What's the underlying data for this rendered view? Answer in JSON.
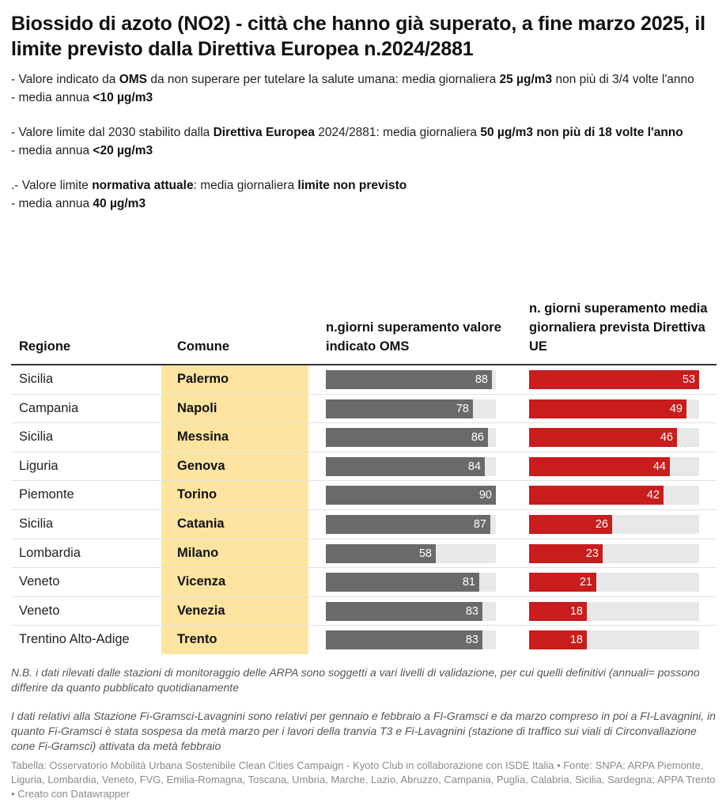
{
  "title": "Biossido di azoto (NO2) - città che hanno già superato, a fine marzo 2025, il limite previsto dalla Direttiva Europea n.2024/2881",
  "description": {
    "oms_line1_a": "- Valore indicato da ",
    "oms_line1_b": "OMS",
    "oms_line1_c": " da non superare per tutelare la salute umana: media giornaliera ",
    "oms_line1_d": "25 µg/m3",
    "oms_line1_e": " non più di 3/4 volte l'anno",
    "oms_line2_a": "- media annua ",
    "oms_line2_b": "<10 µg/m3",
    "ue_line1_a": "- Valore limite dal 2030 stabilito dalla ",
    "ue_line1_b": "Direttiva Europea",
    "ue_line1_c": " 2024/2881: media giornaliera ",
    "ue_line1_d": "50 µg/m3 non più di 18 volte l'anno",
    "ue_line2_a": "- media annua ",
    "ue_line2_b": "<20 µg/m3",
    "cur_line1_a": ".- Valore limite ",
    "cur_line1_b": "normativa attuale",
    "cur_line1_c": ": media giornaliera ",
    "cur_line1_d": "limite non previsto",
    "cur_line2_a": "- media annua ",
    "cur_line2_b": "40 µg/m3"
  },
  "columns": {
    "regione": "Regione",
    "comune": "Comune",
    "oms": "n.giorni superamento valore indicato OMS",
    "ue": "n. giorni superamento media giornaliera prevista Direttiva UE"
  },
  "colors": {
    "oms_bar": "#6a6a6a",
    "ue_bar": "#c91c1c",
    "comune_highlight": "#fde4a0",
    "track": "#e8e8e8"
  },
  "chart_data": {
    "type": "table",
    "oms_max": 90,
    "ue_max": 53,
    "rows": [
      {
        "regione": "Sicilia",
        "comune": "Palermo",
        "oms": 88,
        "ue": 53
      },
      {
        "regione": "Campania",
        "comune": "Napoli",
        "oms": 78,
        "ue": 49
      },
      {
        "regione": "Sicilia",
        "comune": "Messina",
        "oms": 86,
        "ue": 46
      },
      {
        "regione": "Liguria",
        "comune": "Genova",
        "oms": 84,
        "ue": 44
      },
      {
        "regione": "Piemonte",
        "comune": "Torino",
        "oms": 90,
        "ue": 42
      },
      {
        "regione": "Sicilia",
        "comune": "Catania",
        "oms": 87,
        "ue": 26
      },
      {
        "regione": "Lombardia",
        "comune": "Milano",
        "oms": 58,
        "ue": 23
      },
      {
        "regione": "Veneto",
        "comune": "Vicenza",
        "oms": 81,
        "ue": 21
      },
      {
        "regione": "Veneto",
        "comune": "Venezia",
        "oms": 83,
        "ue": 18
      },
      {
        "regione": "Trentino Alto-Adige",
        "comune": "Trento",
        "oms": 83,
        "ue": 18
      }
    ]
  },
  "notes": {
    "nb": "N.B. i dati rilevati dalle stazioni di monitoraggio delle ARPA sono soggetti a vari livelli di validazione, per cui quelli definitivi (annuali= possono differire da quanto pubblicato quotidianamente",
    "station": "I dati relativi alla Stazione Fi-Gramsci-Lavagnini sono relativi per gennaio e febbraio a FI-Gramsci e da marzo compreso in poi a FI-Lavagnini, in quanto Fi-Gramsci è stata sospesa da metà marzo per i lavori della tranvia T3 e Fi-Lavagnini (stazione di traffico sui viali di Circonvallazione cone Fi-Gramsci) attivata da metà febbraio"
  },
  "footer": "Tabella: Osservatorio Mobilità Urbana Sostenibile Clean Cities Campaign - Kyoto Club in collaborazione con ISDE Italia • Fonte: SNPA: ARPA Piemonte, Liguria, Lombardia, Veneto, FVG, Emilia-Romagna, Toscana, Umbria, Marche, Lazio, Abruzzo, Campania, Puglia, Calabria, Sicilia, Sardegna; APPA Trento • Creato con Datawrapper"
}
